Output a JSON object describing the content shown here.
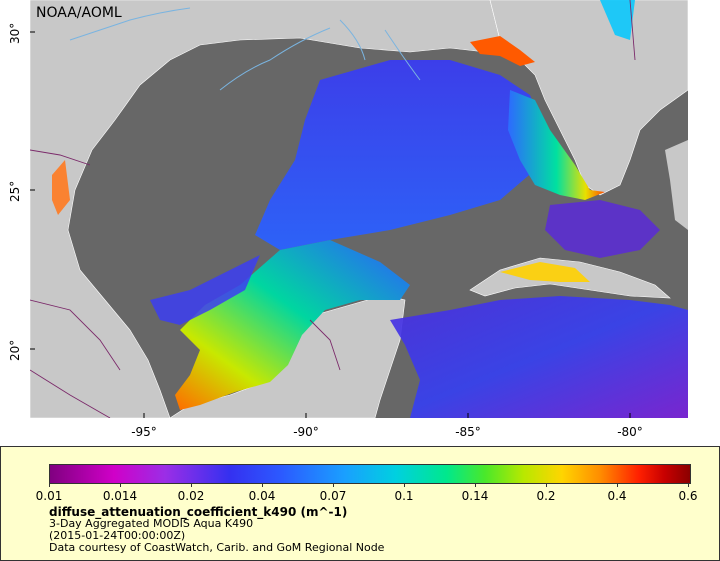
{
  "map": {
    "watermark": "NOAA/AOML",
    "lat_ticks": [
      "30°",
      "25°",
      "20°"
    ],
    "lon_ticks": [
      "-95°",
      "-90°",
      "-85°",
      "-80°"
    ],
    "colors": {
      "ocean_nodata": "#676767",
      "land": "#c8c8c8",
      "border": "#7b2a6a",
      "river": "#7ab4e0"
    }
  },
  "legend": {
    "colorbar_ticks": [
      "0.01",
      "0.014",
      "0.02",
      "0.04",
      "0.07",
      "0.1",
      "0.14",
      "0.2",
      "0.4",
      "0.6"
    ],
    "title": "diffuse_attenuation_coefficient_k490 (m^-1)",
    "subtitle": "3-Day Aggregated MODIS Aqua K490",
    "date": "(2015-01-24T00:00:00Z)",
    "credit": "Data courtesy of CoastWatch, Carib. and GoM Regional Node"
  }
}
